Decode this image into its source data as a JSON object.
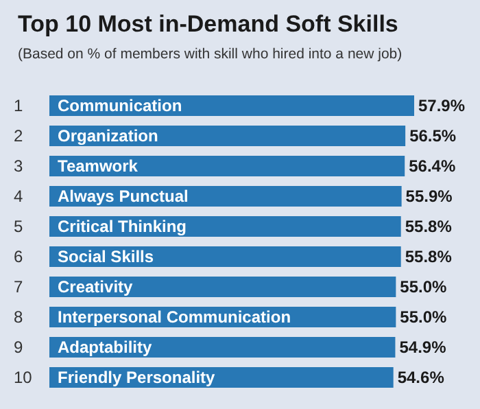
{
  "chart_data": {
    "type": "bar",
    "orientation": "horizontal",
    "title": "Top 10 Most in-Demand Soft Skills",
    "subtitle": "(Based on % of members with skill who hired into a new job)",
    "categories": [
      "Communication",
      "Organization",
      "Teamwork",
      "Always Punctual",
      "Critical Thinking",
      "Social Skills",
      "Creativity",
      "Interpersonal Communication",
      "Adaptability",
      "Friendly Personality"
    ],
    "values": [
      57.9,
      56.5,
      56.4,
      55.9,
      55.8,
      55.8,
      55.0,
      55.0,
      54.9,
      54.6
    ],
    "value_labels": [
      "57.9%",
      "56.5%",
      "56.4%",
      "55.9%",
      "55.8%",
      "55.8%",
      "55.0%",
      "55.0%",
      "54.9%",
      "54.6%"
    ],
    "color": "#2878b5",
    "annotations": [
      "1",
      "2",
      "3",
      "4",
      "5",
      "6",
      "7",
      "8",
      "9",
      "10"
    ]
  }
}
